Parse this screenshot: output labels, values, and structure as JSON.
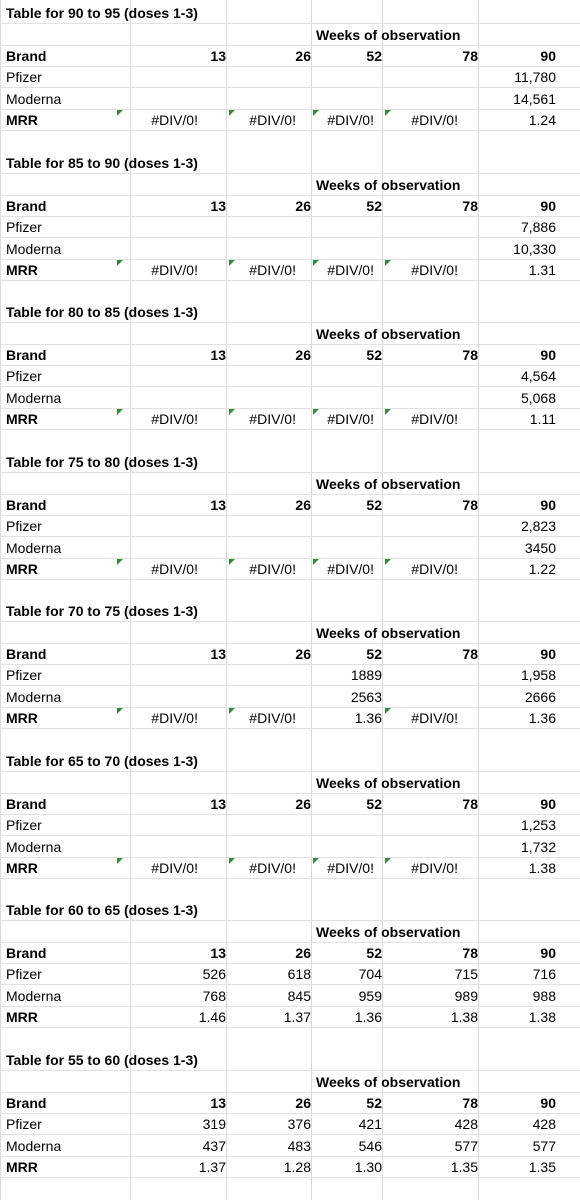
{
  "weeks_label": "Weeks of observation",
  "headers": {
    "brand": "Brand",
    "w13": "13",
    "w26": "26",
    "w52": "52",
    "w78": "78",
    "w90": "90"
  },
  "row_labels": {
    "pfizer": "Pfizer",
    "moderna": "Moderna",
    "mrr": "MRR"
  },
  "tables": [
    {
      "title": "Table for  90 to 95 (doses 1-3)",
      "pfizer": [
        "",
        "",
        "",
        "",
        "11,780"
      ],
      "moderna": [
        "",
        "",
        "",
        "",
        "14,561"
      ],
      "mrr": [
        "#DIV/0!",
        "#DIV/0!",
        "#DIV/0!",
        "#DIV/0!",
        "1.24"
      ]
    },
    {
      "title": "Table for  85 to 90 (doses 1-3)",
      "pfizer": [
        "",
        "",
        "",
        "",
        "7,886"
      ],
      "moderna": [
        "",
        "",
        "",
        "",
        "10,330"
      ],
      "mrr": [
        "#DIV/0!",
        "#DIV/0!",
        "#DIV/0!",
        "#DIV/0!",
        "1.31"
      ]
    },
    {
      "title": "Table for  80 to 85 (doses 1-3)",
      "pfizer": [
        "",
        "",
        "",
        "",
        "4,564"
      ],
      "moderna": [
        "",
        "",
        "",
        "",
        "5,068"
      ],
      "mrr": [
        "#DIV/0!",
        "#DIV/0!",
        "#DIV/0!",
        "#DIV/0!",
        "1.11"
      ]
    },
    {
      "title": "Table for  75 to 80 (doses 1-3)",
      "pfizer": [
        "",
        "",
        "",
        "",
        "2,823"
      ],
      "moderna": [
        "",
        "",
        "",
        "",
        "3450"
      ],
      "mrr": [
        "#DIV/0!",
        "#DIV/0!",
        "#DIV/0!",
        "#DIV/0!",
        "1.22"
      ]
    },
    {
      "title": "Table for  70 to 75 (doses 1-3)",
      "pfizer": [
        "",
        "",
        "1889",
        "",
        "1,958"
      ],
      "moderna": [
        "",
        "",
        "2563",
        "",
        "2666"
      ],
      "mrr": [
        "#DIV/0!",
        "#DIV/0!",
        "1.36",
        "#DIV/0!",
        "1.36"
      ]
    },
    {
      "title": "Table for 65 to 70 (doses 1-3)",
      "pfizer": [
        "",
        "",
        "",
        "",
        "1,253"
      ],
      "moderna": [
        "",
        "",
        "",
        "",
        "1,732"
      ],
      "mrr": [
        "#DIV/0!",
        "#DIV/0!",
        "#DIV/0!",
        "#DIV/0!",
        "1.38"
      ]
    },
    {
      "title": "Table for 60 to 65 (doses 1-3)",
      "pfizer": [
        "526",
        "618",
        "704",
        "715",
        "716"
      ],
      "moderna": [
        "768",
        "845",
        "959",
        "989",
        "988"
      ],
      "mrr": [
        "1.46",
        "1.37",
        "1.36",
        "1.38",
        "1.38"
      ]
    },
    {
      "title": "Table for 55 to 60 (doses 1-3)",
      "pfizer": [
        "319",
        "376",
        "421",
        "428",
        "428"
      ],
      "moderna": [
        "437",
        "483",
        "546",
        "577",
        "577"
      ],
      "mrr": [
        "1.37",
        "1.28",
        "1.30",
        "1.35",
        "1.35"
      ]
    }
  ],
  "colors": {
    "grid": "#d9d9d9",
    "error_marker": "#2e8b3a"
  }
}
